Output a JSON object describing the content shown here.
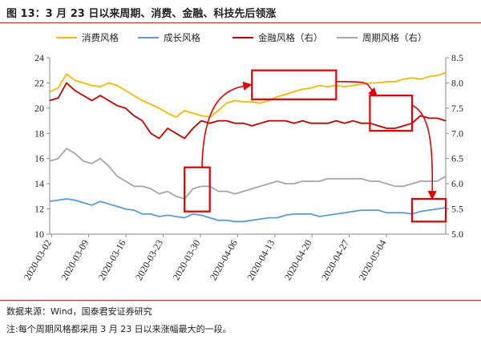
{
  "header": {
    "title": "图 13：3 月 23 日以来周期、消费、金融、科技先后领涨"
  },
  "footer": {
    "source": "数据来源：Wind，国泰君安证券研究",
    "note": "注:每个周期风格都采用 3 月 23 日以来涨幅最大的一段。"
  },
  "chart_data": {
    "type": "line",
    "x_tick_labels": [
      "2020-03-02",
      "2020-03-09",
      "2020-03-16",
      "2020-03-23",
      "2020-03-30",
      "2020-04-06",
      "2020-04-13",
      "2020-04-20",
      "2020-04-27",
      "2020-05-04"
    ],
    "n_points": 48,
    "y_left": {
      "min": 10,
      "max": 24,
      "step": 2
    },
    "y_right": {
      "min": 5.0,
      "max": 8.5,
      "step": 0.5
    },
    "legend_position": "top",
    "grid": false,
    "series": [
      {
        "name": "消费风格",
        "axis": "left",
        "color": "#f5b800",
        "values": [
          21.3,
          21.6,
          22.7,
          22.2,
          22.0,
          21.8,
          21.7,
          22.0,
          21.8,
          21.4,
          21.0,
          20.6,
          20.3,
          20.0,
          19.6,
          19.3,
          19.8,
          19.6,
          19.4,
          19.3,
          19.8,
          20.4,
          20.6,
          20.5,
          20.5,
          20.4,
          20.6,
          20.9,
          21.1,
          21.3,
          21.5,
          21.6,
          21.8,
          21.7,
          21.8,
          21.7,
          21.8,
          21.9,
          22.0,
          22.0,
          22.1,
          22.1,
          22.3,
          22.4,
          22.3,
          22.5,
          22.6,
          22.8
        ]
      },
      {
        "name": "成长风格",
        "axis": "left",
        "color": "#5b9bd5",
        "values": [
          12.6,
          12.7,
          12.8,
          12.7,
          12.5,
          12.3,
          12.6,
          12.4,
          12.2,
          12.0,
          11.9,
          11.6,
          11.6,
          11.4,
          11.5,
          11.4,
          11.3,
          11.6,
          11.5,
          11.3,
          11.1,
          11.1,
          11.0,
          11.0,
          11.1,
          11.2,
          11.3,
          11.3,
          11.5,
          11.6,
          11.6,
          11.6,
          11.4,
          11.5,
          11.6,
          11.7,
          11.8,
          11.9,
          11.9,
          11.9,
          11.7,
          11.7,
          11.7,
          11.6,
          11.8,
          11.9,
          12.0,
          12.1
        ]
      },
      {
        "name": "金融风格（右）",
        "axis": "right",
        "color": "#c00000",
        "values": [
          7.65,
          7.7,
          8.0,
          7.85,
          7.75,
          7.65,
          7.75,
          7.65,
          7.55,
          7.5,
          7.35,
          7.25,
          7.0,
          6.9,
          7.1,
          7.0,
          6.9,
          7.1,
          7.25,
          7.2,
          7.25,
          7.25,
          7.2,
          7.2,
          7.15,
          7.2,
          7.25,
          7.25,
          7.25,
          7.2,
          7.25,
          7.2,
          7.2,
          7.2,
          7.25,
          7.2,
          7.25,
          7.2,
          7.2,
          7.15,
          7.1,
          7.1,
          7.15,
          7.2,
          7.35,
          7.3,
          7.3,
          7.25
        ]
      },
      {
        "name": "周期风格（右）",
        "axis": "right",
        "color": "#a6a6a6",
        "values": [
          6.45,
          6.5,
          6.7,
          6.6,
          6.45,
          6.4,
          6.5,
          6.35,
          6.15,
          6.05,
          5.95,
          5.95,
          5.9,
          5.8,
          5.85,
          5.75,
          5.7,
          5.9,
          5.95,
          5.95,
          5.85,
          5.85,
          5.8,
          5.85,
          5.9,
          5.95,
          6.0,
          6.05,
          6.0,
          6.0,
          6.05,
          6.05,
          6.05,
          6.1,
          6.1,
          6.1,
          6.1,
          6.1,
          6.05,
          6.05,
          6.0,
          5.95,
          5.95,
          6.0,
          6.05,
          6.05,
          6.05,
          6.15
        ]
      }
    ],
    "annotations": [
      {
        "kind": "highlight-box",
        "x_start": 16,
        "x_end": 19,
        "y_left": [
          11.8,
          15.3
        ],
        "color": "#e00000"
      },
      {
        "kind": "highlight-box",
        "x_start": 24,
        "x_end": 34,
        "y_left": [
          20.7,
          23.0
        ],
        "color": "#e00000"
      },
      {
        "kind": "highlight-box",
        "x_start": 38,
        "x_end": 43,
        "y_left": [
          18.2,
          21.0
        ],
        "color": "#e00000"
      },
      {
        "kind": "highlight-box",
        "x_start": 43,
        "x_end": 47,
        "y_left": [
          11.0,
          12.8
        ],
        "color": "#e00000"
      },
      {
        "kind": "arrow",
        "from_box": 0,
        "to_box": 1
      },
      {
        "kind": "arrow",
        "from_box": 1,
        "to_box": 2
      },
      {
        "kind": "arrow",
        "from_box": 2,
        "to_box": 3
      }
    ]
  }
}
